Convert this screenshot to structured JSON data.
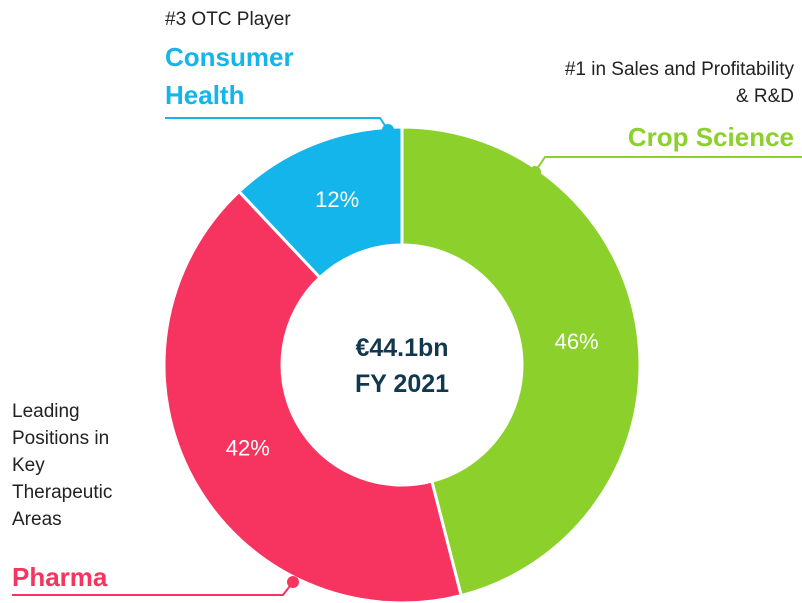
{
  "chart_data": {
    "type": "pie",
    "donut": true,
    "categories": [
      "Crop Science",
      "Pharma",
      "Consumer Health"
    ],
    "values": [
      46,
      42,
      12
    ],
    "value_labels": [
      "46%",
      "42%",
      "12%"
    ],
    "colors": [
      "#8cd12b",
      "#f7335f",
      "#13b5ea"
    ],
    "descriptions": [
      "#1 in Sales and Profitability & R&D",
      "Leading Positions in Key Therapeutic Areas",
      "#3 OTC Player"
    ],
    "center_text": [
      "€44.1bn",
      "FY 2021"
    ]
  }
}
